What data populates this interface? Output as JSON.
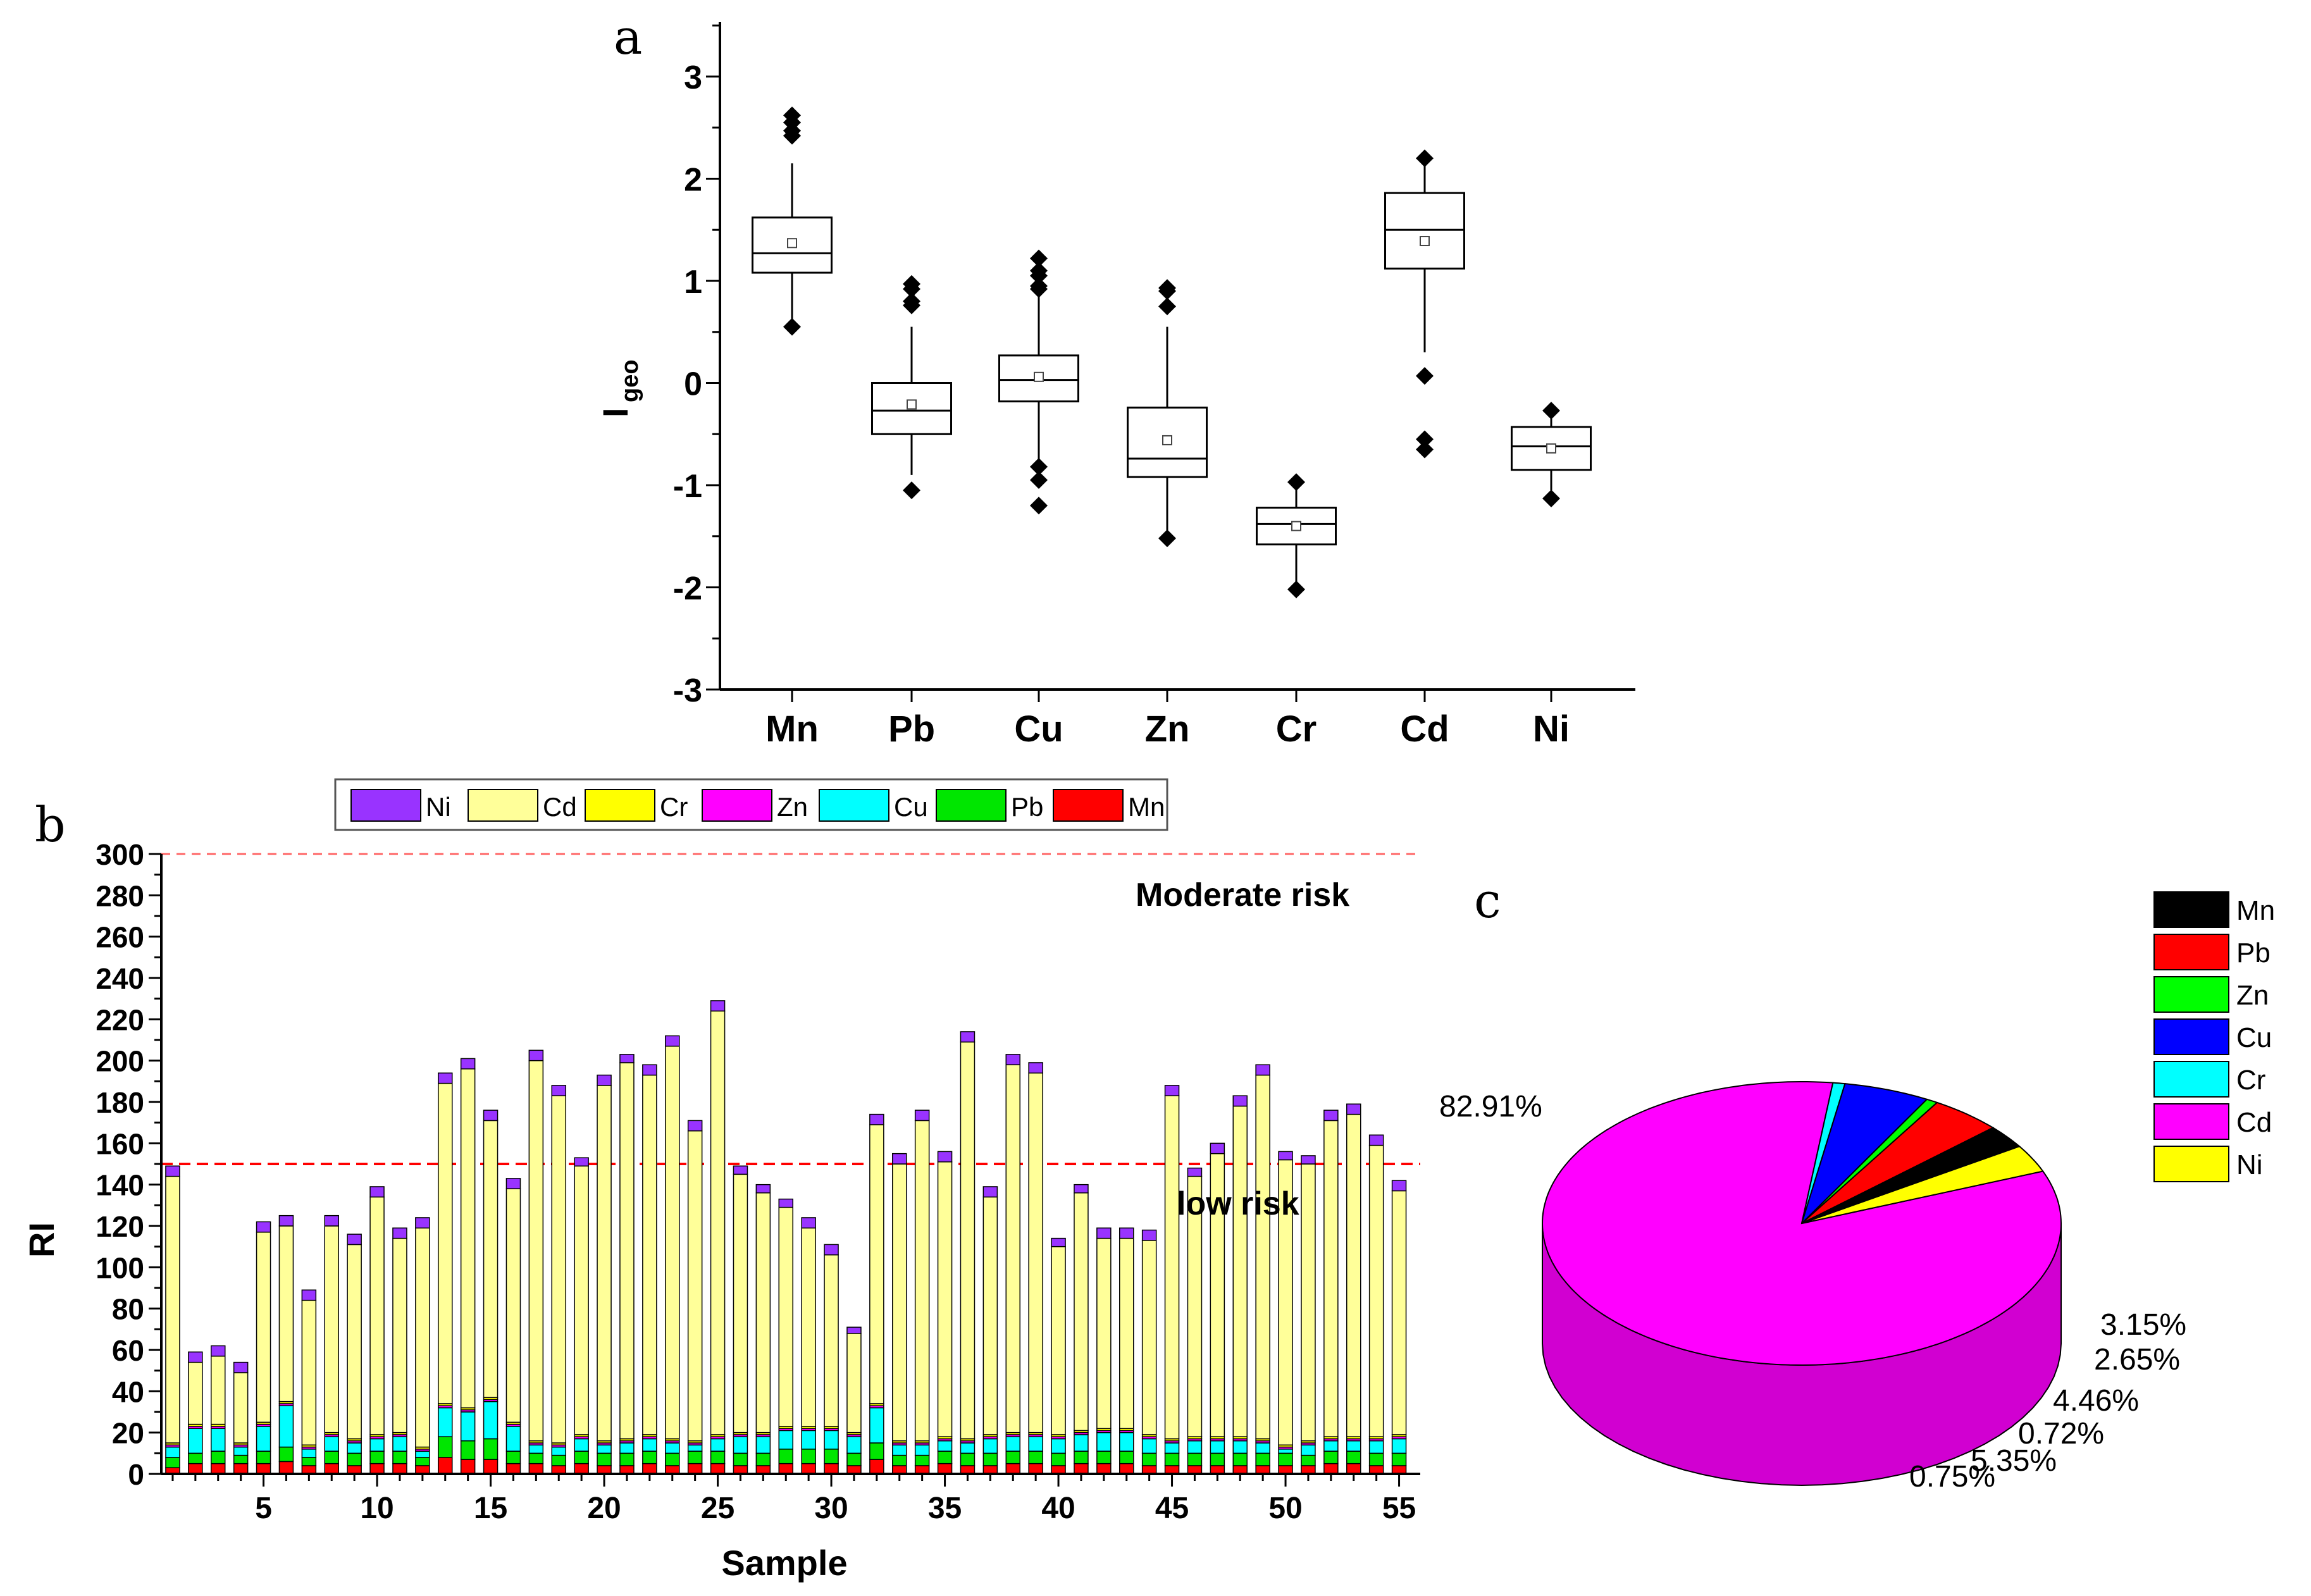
{
  "chart_data": [
    {
      "type": "box",
      "panel": "a",
      "ylabel": "I",
      "ylabel_sub": "geo",
      "ylim": [
        -3,
        3.5
      ],
      "yticks": [
        3,
        2,
        1,
        0,
        -1,
        -2,
        -3
      ],
      "series": [
        {
          "name": "Mn",
          "whisker_low": 0.55,
          "q1": 1.08,
          "median": 1.27,
          "q3": 1.62,
          "whisker_high": 2.15,
          "mean": 1.37,
          "outliers": [
            2.62,
            2.55,
            2.47,
            2.42,
            0.55
          ]
        },
        {
          "name": "Pb",
          "whisker_low": -0.9,
          "q1": -0.5,
          "median": -0.27,
          "q3": 0.0,
          "whisker_high": 0.55,
          "mean": -0.21,
          "outliers": [
            0.97,
            0.92,
            0.8,
            0.76,
            -1.05
          ]
        },
        {
          "name": "Cu",
          "whisker_low": -0.75,
          "q1": -0.18,
          "median": 0.03,
          "q3": 0.27,
          "whisker_high": 0.9,
          "mean": 0.06,
          "outliers": [
            1.22,
            1.1,
            1.05,
            0.95,
            0.92,
            -0.82,
            -0.95,
            -1.2
          ]
        },
        {
          "name": "Zn",
          "whisker_low": -1.48,
          "q1": -0.92,
          "median": -0.74,
          "q3": -0.24,
          "whisker_high": 0.55,
          "mean": -0.56,
          "outliers": [
            0.93,
            0.9,
            0.75,
            -1.52
          ]
        },
        {
          "name": "Cr",
          "whisker_low": -1.95,
          "q1": -1.58,
          "median": -1.38,
          "q3": -1.22,
          "whisker_high": -1.0,
          "mean": -1.4,
          "outliers": [
            -0.97,
            -2.02
          ]
        },
        {
          "name": "Cd",
          "whisker_low": 0.3,
          "q1": 1.12,
          "median": 1.5,
          "q3": 1.86,
          "whisker_high": 2.15,
          "mean": 1.39,
          "outliers": [
            2.2,
            0.07,
            -0.55,
            -0.65
          ]
        },
        {
          "name": "Ni",
          "whisker_low": -1.05,
          "q1": -0.85,
          "median": -0.62,
          "q3": -0.43,
          "whisker_high": -0.28,
          "mean": -0.64,
          "outliers": [
            -0.27,
            -1.13
          ]
        }
      ]
    },
    {
      "type": "bar",
      "panel": "b",
      "stacked": true,
      "xlabel": "Sample",
      "ylabel": "RI",
      "ylim": [
        0,
        300
      ],
      "yticks": [
        0,
        20,
        40,
        60,
        80,
        100,
        120,
        140,
        160,
        180,
        200,
        220,
        240,
        260,
        280,
        300
      ],
      "xticks": [
        5,
        10,
        15,
        20,
        25,
        30,
        35,
        40,
        45,
        50,
        55
      ],
      "legend": [
        "Ni",
        "Cd",
        "Cr",
        "Zn",
        "Cu",
        "Pb",
        "Mn"
      ],
      "reference_lines": [
        {
          "value": 150,
          "label": "low risk"
        },
        {
          "value": 300,
          "label": "Moderate risk"
        }
      ],
      "categories": [
        1,
        2,
        3,
        4,
        5,
        6,
        7,
        8,
        9,
        10,
        11,
        12,
        13,
        14,
        15,
        16,
        17,
        18,
        19,
        20,
        21,
        22,
        23,
        24,
        25,
        26,
        27,
        28,
        29,
        30,
        31,
        32,
        33,
        34,
        35,
        36,
        37,
        38,
        39,
        40,
        41,
        42,
        43,
        44,
        45,
        46,
        47,
        48,
        49,
        50,
        51,
        52,
        53,
        54,
        55
      ],
      "series": [
        {
          "name": "Mn",
          "values": [
            3,
            5,
            5,
            5,
            5,
            6,
            4,
            5,
            4,
            5,
            5,
            4,
            8,
            7,
            7,
            5,
            5,
            4,
            5,
            4,
            4,
            5,
            4,
            5,
            5,
            4,
            4,
            5,
            5,
            5,
            4,
            7,
            4,
            4,
            5,
            4,
            4,
            5,
            5,
            4,
            5,
            5,
            5,
            4,
            4,
            4,
            4,
            4,
            4,
            4,
            4,
            5,
            5,
            4,
            4
          ]
        },
        {
          "name": "Pb",
          "values": [
            5,
            5,
            6,
            4,
            6,
            7,
            4,
            6,
            6,
            6,
            6,
            4,
            10,
            9,
            10,
            6,
            5,
            5,
            6,
            6,
            6,
            6,
            6,
            6,
            6,
            6,
            6,
            7,
            7,
            7,
            6,
            8,
            5,
            5,
            6,
            6,
            6,
            6,
            6,
            6,
            6,
            6,
            6,
            6,
            6,
            6,
            6,
            6,
            6,
            6,
            5,
            6,
            6,
            6,
            6
          ]
        },
        {
          "name": "Cu",
          "values": [
            5,
            12,
            11,
            4,
            12,
            20,
            4,
            7,
            5,
            6,
            7,
            3,
            14,
            14,
            18,
            12,
            4,
            4,
            6,
            4,
            5,
            6,
            5,
            3,
            6,
            8,
            8,
            9,
            9,
            9,
            8,
            17,
            5,
            5,
            5,
            5,
            7,
            7,
            7,
            7,
            8,
            9,
            9,
            7,
            5,
            6,
            6,
            6,
            5,
            2,
            5,
            5,
            5,
            6,
            7
          ]
        },
        {
          "name": "Zn",
          "values": [
            1,
            1,
            1,
            1,
            1,
            1,
            1,
            1,
            1,
            1,
            1,
            1,
            1,
            1,
            1,
            1,
            1,
            1,
            1,
            1,
            1,
            1,
            1,
            1,
            1,
            1,
            1,
            1,
            1,
            1,
            1,
            1,
            1,
            1,
            1,
            1,
            1,
            1,
            1,
            1,
            1,
            1,
            1,
            1,
            1,
            1,
            1,
            1,
            1,
            1,
            1,
            1,
            1,
            1,
            1
          ]
        },
        {
          "name": "Cr",
          "values": [
            1,
            1,
            1,
            1,
            1,
            1,
            1,
            1,
            1,
            1,
            1,
            1,
            1,
            1,
            1,
            1,
            1,
            1,
            1,
            1,
            1,
            1,
            1,
            1,
            1,
            1,
            1,
            1,
            1,
            1,
            1,
            1,
            1,
            1,
            1,
            1,
            1,
            1,
            1,
            1,
            1,
            1,
            1,
            1,
            1,
            1,
            1,
            1,
            1,
            1,
            1,
            1,
            1,
            1,
            1
          ]
        },
        {
          "name": "Cd",
          "values": [
            129,
            30,
            33,
            34,
            92,
            85,
            70,
            100,
            94,
            115,
            94,
            106,
            155,
            164,
            134,
            113,
            184,
            168,
            130,
            172,
            182,
            174,
            190,
            150,
            205,
            125,
            116,
            106,
            96,
            83,
            48,
            135,
            134,
            155,
            133,
            192,
            115,
            178,
            174,
            91,
            115,
            92,
            92,
            94,
            166,
            126,
            137,
            160,
            176,
            138,
            134,
            153,
            156,
            141,
            118
          ]
        },
        {
          "name": "Ni",
          "values": [
            5,
            5,
            5,
            5,
            5,
            5,
            5,
            5,
            5,
            5,
            5,
            5,
            5,
            5,
            5,
            5,
            5,
            5,
            4,
            5,
            4,
            5,
            5,
            5,
            5,
            4,
            4,
            4,
            5,
            5,
            3,
            5,
            5,
            5,
            5,
            5,
            5,
            5,
            5,
            4,
            4,
            5,
            5,
            5,
            5,
            4,
            5,
            5,
            5,
            4,
            4,
            5,
            5,
            5,
            5
          ]
        }
      ]
    },
    {
      "type": "pie",
      "panel": "c",
      "style": "3d",
      "legend": [
        "Mn",
        "Pb",
        "Zn",
        "Cu",
        "Cr",
        "Cd",
        "Ni"
      ],
      "slices": [
        {
          "name": "Cd",
          "value": 82.91,
          "label": "82.91%"
        },
        {
          "name": "Cr",
          "value": 0.75,
          "label": "0.75%"
        },
        {
          "name": "Cu",
          "value": 5.35,
          "label": "5.35%"
        },
        {
          "name": "Zn",
          "value": 0.72,
          "label": "0.72%"
        },
        {
          "name": "Pb",
          "value": 4.46,
          "label": "4.46%"
        },
        {
          "name": "Mn",
          "value": 2.65,
          "label": "2.65%"
        },
        {
          "name": "Ni",
          "value": 3.15,
          "label": "3.15%"
        }
      ]
    }
  ],
  "panels": {
    "a": "a",
    "b": "b",
    "c": "c"
  },
  "colors": {
    "Mn": "#ff0000",
    "Pb": "#00e600",
    "Cu": "#00ffff",
    "Zn": "#ff00ff",
    "Cr": "#ffff00",
    "Cd": "#ffff99",
    "Ni": "#9933ff",
    "pie_Mn": "#000000",
    "pie_Pb": "#ff0000",
    "pie_Zn": "#00ff00",
    "pie_Cu": "#0000ff",
    "pie_Cr": "#00ffff",
    "pie_Cd": "#ff00ff",
    "pie_Ni": "#ffff00",
    "risk_line_low": "#ff0000",
    "risk_line_moderate": "#ff6666"
  }
}
